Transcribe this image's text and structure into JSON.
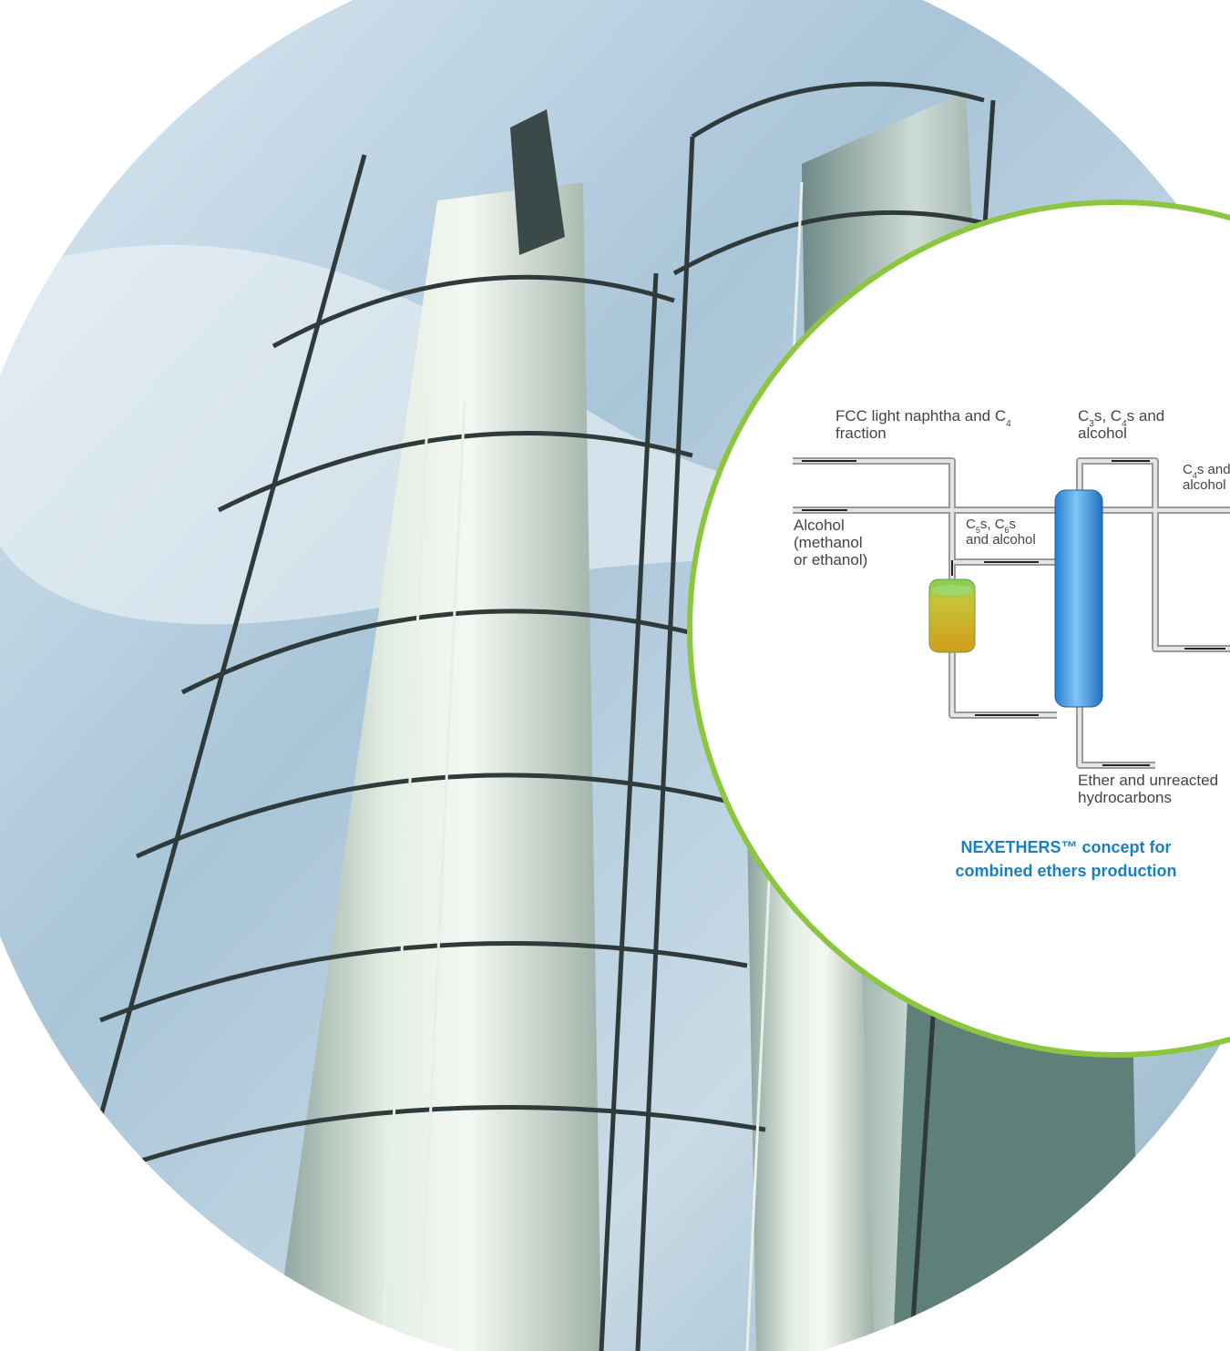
{
  "diagram": {
    "labels": [
      {
        "lines": [
          [
            "FCC light naphtha and C",
            "4"
          ],
          [
            "fraction"
          ]
        ]
      },
      {
        "lines": [
          [
            "C",
            "3",
            "s, C",
            "4",
            "s and"
          ],
          [
            "alcohol"
          ]
        ]
      },
      {
        "lines": [
          [
            "C",
            "4",
            "s and"
          ],
          [
            "alcohol"
          ]
        ]
      },
      {
        "lines": [
          [
            "Alcohol"
          ],
          [
            "(methanol"
          ],
          [
            "or ethanol)"
          ]
        ]
      },
      {
        "lines": [
          [
            "C",
            "5",
            "s, C",
            "6",
            "s"
          ],
          [
            "and alcohol"
          ]
        ]
      },
      {
        "lines": [
          [
            "Ether and unreacted"
          ],
          [
            "hydrocarbons"
          ]
        ]
      }
    ],
    "caption": [
      "NEXETHERS™ concept for",
      "combined ethers production"
    ]
  }
}
